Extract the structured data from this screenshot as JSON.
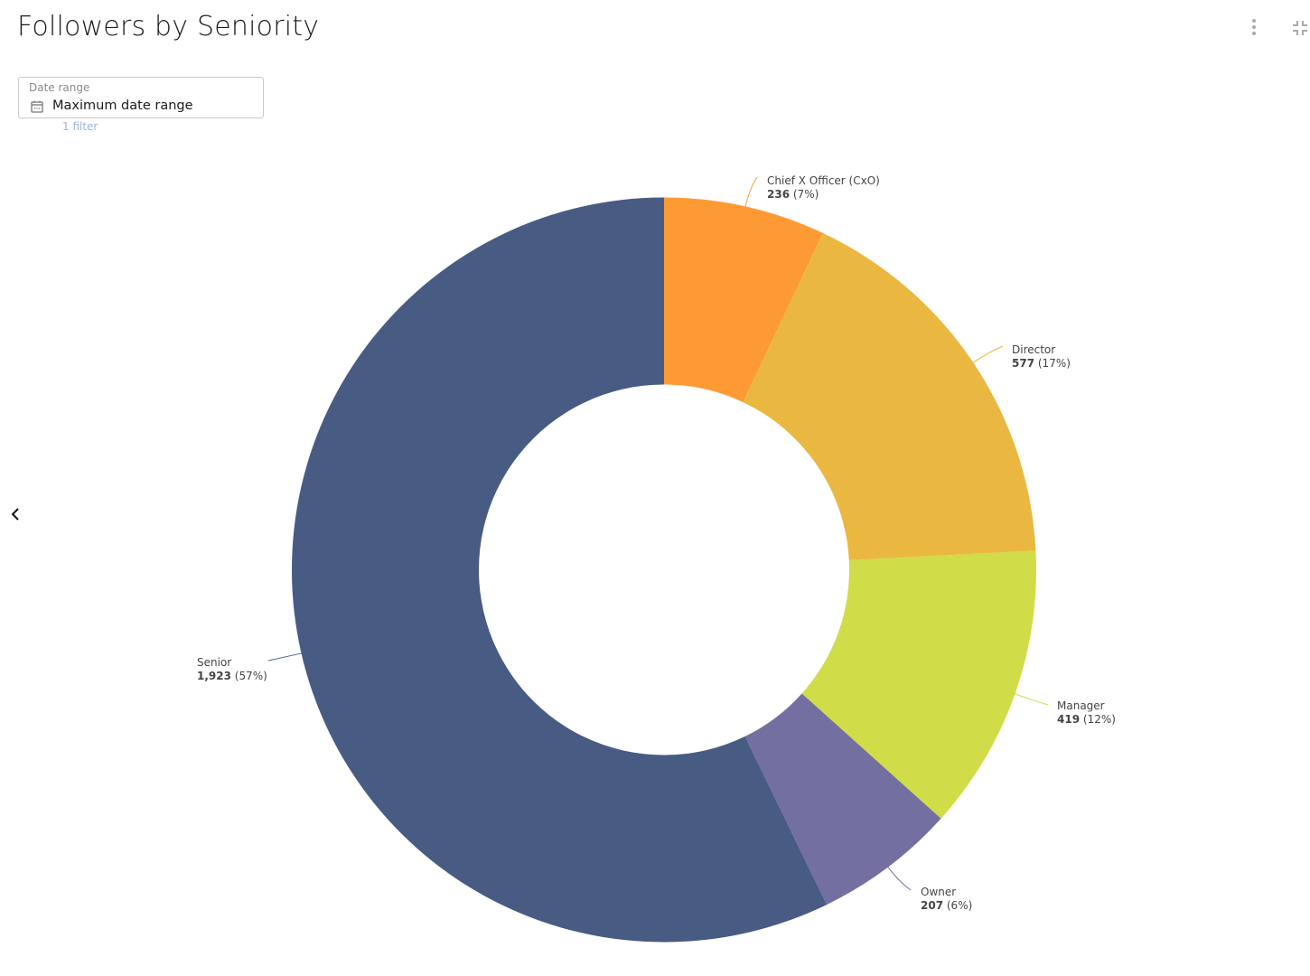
{
  "header": {
    "title": "Followers by Seniority",
    "menu_icon": "vertical-dots-icon",
    "collapse_icon": "collapse-icon"
  },
  "filter": {
    "label": "Date range",
    "value": "Maximum date range",
    "icon": "calendar-icon",
    "count_text": "1 filter"
  },
  "nav": {
    "back_icon": "chevron-left-icon"
  },
  "chart_data": {
    "type": "pie",
    "donut": true,
    "title": "Followers by Seniority",
    "categories": [
      "Chief X Officer (CxO)",
      "Director",
      "Manager",
      "Owner",
      "Senior"
    ],
    "values": [
      236,
      577,
      419,
      207,
      1923
    ],
    "value_labels": [
      "236",
      "577",
      "419",
      "207",
      "1,923"
    ],
    "percent_labels": [
      "(7%)",
      "(17%)",
      "(12%)",
      "(6%)",
      "(57%)"
    ],
    "colors": [
      "#FD9A34",
      "#EAB840",
      "#D0DC48",
      "#736FA1",
      "#485B83"
    ],
    "start": "top",
    "direction": "clockwise"
  }
}
